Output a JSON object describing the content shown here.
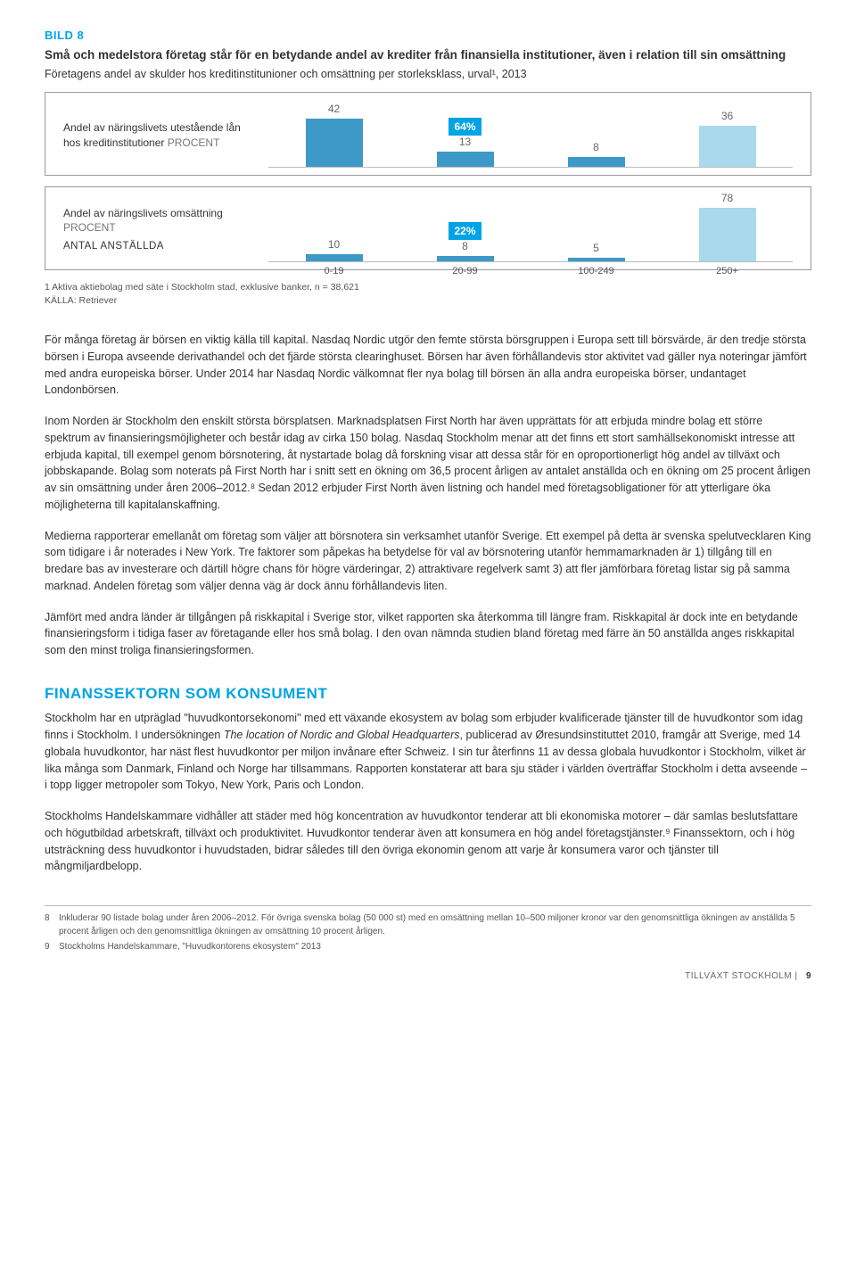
{
  "bild": {
    "label": "BILD 8",
    "title": "Små och medelstora företag står för en betydande andel av krediter från finansiella institutioner, även i relation till sin omsättning",
    "subtitle": "Företagens andel av skulder hos kreditinstitunioner och omsättning per storleksklass, urval¹, 2013"
  },
  "chart1": {
    "left1": "Andel av näringslivets utestående lån",
    "left2": "hos kreditinstitutioner",
    "procent": "PROCENT",
    "highlight": "64%",
    "values": [
      42,
      13,
      8,
      36
    ],
    "colors": [
      "#3d99c8",
      "#3d99c8",
      "#3d99c8",
      "#a9d9ec"
    ],
    "heights": [
      54,
      17,
      11,
      46
    ],
    "highlight_col": 1
  },
  "chart2": {
    "left1": "Andel av näringslivets omsättning",
    "procent": "PROCENT",
    "antal": "ANTAL ANSTÄLLDA",
    "highlight": "22%",
    "values": [
      10,
      8,
      5,
      78
    ],
    "colors": [
      "#3d99c8",
      "#3d99c8",
      "#3d99c8",
      "#a9d9ec"
    ],
    "heights": [
      8,
      6,
      4,
      60
    ],
    "highlight_col": 1,
    "xaxis": [
      "0-19",
      "20-99",
      "100-249",
      "250+"
    ]
  },
  "footnote": "1 Aktiva aktiebolag med säte i Stockholm stad, exklusive banker, n = 38,621",
  "source": "KÄLLA: Retriever",
  "p1": "För många företag är börsen en viktig källa till kapital. Nasdaq Nordic utgör den femte största börsgruppen i Europa sett till börsvärde, är den tredje största börsen i Europa avseende derivathandel och det fjärde största clearinghuset. Börsen har även förhållandevis stor aktivitet vad gäller nya noteringar jämfört med andra europeiska börser. Under 2014 har Nasdaq Nordic välkomnat fler nya bolag till börsen än alla andra europeiska börser, undantaget Londonbörsen.",
  "p2": "Inom Norden är Stockholm den enskilt största börsplatsen. Marknadsplatsen First North har även upprättats för att erbjuda mindre bolag ett större spektrum av finansieringsmöjligheter och består idag av cirka 150 bolag. Nasdaq Stockholm menar att det finns ett stort samhällsekonomiskt intresse att erbjuda kapital, till exempel genom börsnotering, åt nystartade bolag då forskning visar att dessa står för en oproportionerligt hög andel av tillväxt och jobbskapande. Bolag som noterats på First North har i snitt sett en ökning om 36,5 procent årligen av antalet anställda och en ökning om 25 procent årligen av sin omsättning under åren 2006–2012.⁸ Sedan 2012 erbjuder First North även listning och handel med företagsobligationer för att ytterligare öka möjligheterna till kapitalanskaffning.",
  "p3": "Medierna rapporterar emellanåt om företag som väljer att börsnotera sin verksamhet utanför Sverige. Ett exempel på detta är svenska spelutvecklaren King som tidigare i år noterades i New York. Tre faktorer som påpekas ha betydelse för val av börsnotering utanför hemmamarknaden är 1) tillgång till en bredare bas av investerare och därtill högre chans för högre värderingar, 2) attraktivare regelverk samt 3) att fler jämförbara företag listar sig på samma marknad. Andelen företag som väljer denna väg är dock ännu förhållandevis liten.",
  "p4": "Jämfört med andra länder är tillgången på riskkapital i Sverige stor, vilket rapporten ska återkomma till längre fram. Riskkapital är dock inte en betydande finansieringsform i tidiga faser av företagande eller hos små bolag. I den ovan nämnda studien bland företag med färre än 50 anställda anges riskkapital som den minst troliga finansieringsformen.",
  "section_h": "FINANSSEKTORN SOM KONSUMENT",
  "p5a": "Stockholm har en utpräglad \"huvudkontorsekonomi\" med ett växande ekosystem av bolag som erbjuder kvalificerade tjänster till de huvudkontor som idag finns i Stockholm. I undersökningen ",
  "p5i": "The location of Nordic and Global Headquarters",
  "p5b": ", publicerad av Øresundsinstituttet 2010, framgår att Sverige, med 14 globala huvudkontor, har näst flest huvudkontor per miljon invånare efter Schweiz. I sin tur återfinns 11 av dessa globala huvudkontor i Stockholm, vilket är lika många som Danmark, Finland och Norge har tillsammans. Rapporten konstaterar att bara sju städer i världen överträffar Stockholm i detta avseende – i topp ligger metropoler som Tokyo, New York, Paris och London.",
  "p6": "Stockholms Handelskammare vidhåller att städer med hög koncentration av huvudkontor tenderar att bli ekonomiska motorer – där samlas beslutsfattare och högutbildad arbetskraft, tillväxt och produktivitet. Huvudkontor tenderar även att konsumera en hög andel företagstjänster.⁹ Finanssektorn, och i hög utsträckning dess huvudkontor i huvudstaden, bidrar således till den övriga ekonomin genom att varje år konsumera varor och tjänster till mångmiljardbelopp.",
  "fn8": "Inkluderar 90 listade bolag under åren 2006–2012. För övriga svenska bolag (50 000 st) med en omsättning mellan 10–500 miljoner kronor var den genomsnittliga ökningen av anställda 5 procent årligen och den genomsnittliga ökningen av omsättning 10 procent årligen.",
  "fn9": "Stockholms Handelskammare, \"Huvudkontorens ekosystem\" 2013",
  "footer": {
    "label": "TILLVÄXT STOCKHOLM",
    "page": "9"
  }
}
